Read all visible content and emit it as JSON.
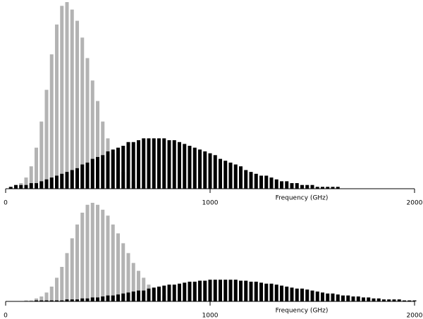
{
  "chart_data": [
    {
      "type": "stick",
      "x_label": "Frequency (GHz)",
      "xlim": [
        0,
        2000
      ],
      "xticks": [
        0,
        1000,
        2000
      ],
      "ylim": [
        0,
        100
      ],
      "x": [
        25,
        50,
        75,
        100,
        125,
        150,
        175,
        200,
        225,
        250,
        275,
        300,
        325,
        350,
        375,
        400,
        425,
        450,
        475,
        500,
        525,
        550,
        575,
        600,
        625,
        650,
        675,
        700,
        725,
        750,
        775,
        800,
        825,
        850,
        875,
        900,
        925,
        950,
        975,
        1000,
        1025,
        1050,
        1075,
        1100,
        1125,
        1150,
        1175,
        1200,
        1225,
        1250,
        1275,
        1300,
        1325,
        1350,
        1375,
        1400,
        1425,
        1450,
        1475,
        1500,
        1525,
        1550,
        1575,
        1600,
        1625,
        1650,
        1675,
        1700,
        1725,
        1750
      ],
      "series": [
        {
          "color": "#b3b3b3",
          "values": [
            0,
            1,
            3,
            6,
            12,
            22,
            36,
            53,
            72,
            88,
            98,
            100,
            96,
            90,
            81,
            70,
            58,
            47,
            36,
            27,
            19,
            14,
            9,
            6,
            4,
            2,
            1,
            null,
            null,
            null,
            null,
            null,
            null,
            null,
            null,
            null,
            null,
            null,
            null,
            null,
            null,
            null,
            null,
            null,
            null,
            null,
            null,
            null,
            null,
            null,
            null,
            null,
            null,
            null,
            null,
            null,
            null,
            null,
            null,
            null,
            null,
            null,
            null,
            null,
            null,
            null,
            null,
            null,
            null,
            null
          ]
        },
        {
          "color": "#000000",
          "values": [
            1,
            2,
            2,
            2,
            3,
            3,
            4,
            5,
            6,
            7,
            8,
            9,
            10,
            11,
            13,
            14,
            16,
            17,
            18,
            20,
            21,
            22,
            23,
            25,
            25,
            26,
            27,
            27,
            27,
            27,
            27,
            26,
            26,
            25,
            24,
            23,
            22,
            21,
            20,
            19,
            18,
            16,
            15,
            14,
            13,
            12,
            10,
            9,
            8,
            7,
            7,
            6,
            5,
            4,
            4,
            3,
            3,
            2,
            2,
            2,
            1,
            1,
            1,
            1,
            1,
            0,
            0,
            0,
            0,
            0
          ]
        }
      ]
    },
    {
      "type": "stick",
      "x_label": "Frequency (GHz)",
      "xlim": [
        0,
        2000
      ],
      "xticks": [
        0,
        1000,
        2000
      ],
      "ylim": [
        0,
        100
      ],
      "x": [
        25,
        50,
        75,
        100,
        125,
        150,
        175,
        200,
        225,
        250,
        275,
        300,
        325,
        350,
        375,
        400,
        425,
        450,
        475,
        500,
        525,
        550,
        575,
        600,
        625,
        650,
        675,
        700,
        725,
        750,
        775,
        800,
        825,
        850,
        875,
        900,
        925,
        950,
        975,
        1000,
        1025,
        1050,
        1075,
        1100,
        1125,
        1150,
        1175,
        1200,
        1225,
        1250,
        1275,
        1300,
        1325,
        1350,
        1375,
        1400,
        1425,
        1450,
        1475,
        1500,
        1525,
        1550,
        1575,
        1600,
        1625,
        1650,
        1675,
        1700,
        1725,
        1750,
        1775,
        1800,
        1825,
        1850,
        1875,
        1900,
        1925,
        1950,
        1975,
        2000
      ],
      "series": [
        {
          "color": "#b3b3b3",
          "values": [
            0,
            0,
            0,
            1,
            1,
            3,
            5,
            9,
            15,
            24,
            35,
            49,
            64,
            78,
            90,
            98,
            100,
            98,
            93,
            87,
            78,
            69,
            59,
            49,
            39,
            31,
            24,
            17,
            13,
            9,
            6,
            4,
            3,
            2,
            1,
            1,
            null,
            null,
            null,
            null,
            null,
            null,
            null,
            null,
            null,
            null,
            null,
            null,
            null,
            null,
            null,
            null,
            null,
            null,
            null,
            null,
            null,
            null,
            null,
            null,
            null,
            null,
            null,
            null,
            null,
            null,
            null,
            null,
            null,
            null,
            null,
            null,
            null,
            null,
            null,
            null,
            null,
            null,
            null,
            null
          ]
        },
        {
          "color": "#000000",
          "values": [
            0,
            0,
            0,
            0,
            0,
            1,
            1,
            1,
            1,
            1,
            1,
            2,
            2,
            2,
            3,
            3,
            4,
            4,
            5,
            6,
            6,
            7,
            8,
            9,
            10,
            11,
            11,
            13,
            14,
            15,
            16,
            17,
            17,
            18,
            19,
            20,
            20,
            21,
            21,
            22,
            22,
            22,
            22,
            22,
            22,
            21,
            21,
            20,
            20,
            19,
            18,
            18,
            17,
            16,
            15,
            14,
            13,
            13,
            12,
            11,
            10,
            9,
            8,
            8,
            7,
            6,
            6,
            5,
            5,
            4,
            4,
            3,
            3,
            2,
            2,
            2,
            2,
            1,
            1,
            1
          ]
        }
      ]
    }
  ]
}
